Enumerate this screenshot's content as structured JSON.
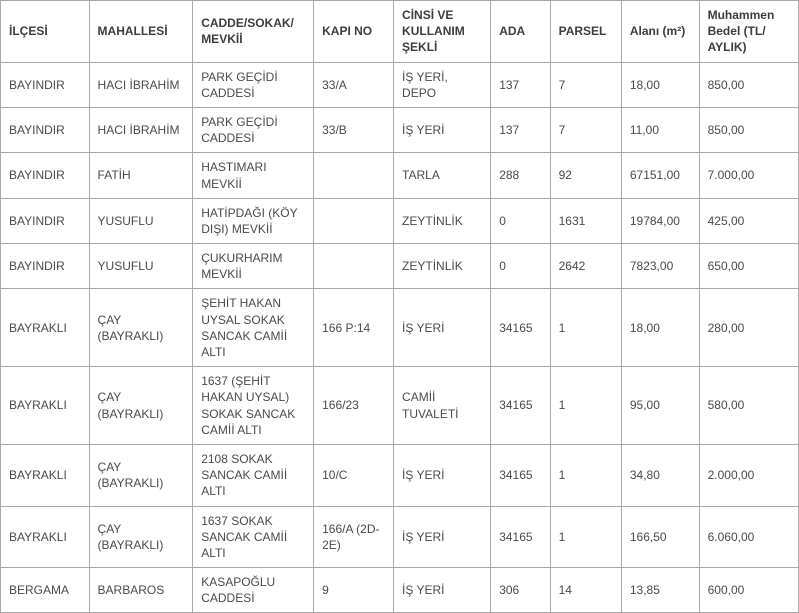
{
  "table": {
    "columns": [
      "İLÇESİ",
      "MAHALLESİ",
      "CADDE/SOKAK/\nMEVKİİ",
      "KAPI NO",
      "CİNSİ VE KULLANIM ŞEKLİ",
      "ADA",
      "PARSEL",
      "Alanı (m²)",
      "Muhammen Bedel (TL/\nAYLIK)"
    ],
    "rows": [
      [
        "BAYINDIR",
        "HACI İBRAHİM",
        "PARK GEÇİDİ CADDESİ",
        "33/A",
        "İŞ YERİ, DEPO",
        "137",
        "7",
        "18,00",
        "850,00"
      ],
      [
        "BAYINDIR",
        "HACI İBRAHİM",
        "PARK GEÇİDİ CADDESİ",
        "33/B",
        "İŞ YERİ",
        "137",
        "7",
        "11,00",
        "850,00"
      ],
      [
        "BAYINDIR",
        "FATİH",
        "HASTIMARI MEVKİİ",
        "",
        "TARLA",
        "288",
        "92",
        "67151,00",
        "7.000,00"
      ],
      [
        "BAYINDIR",
        "YUSUFLU",
        "HATİPDAĞI (KÖY DIŞI) MEVKİİ",
        "",
        "ZEYTİNLİK",
        "0",
        "1631",
        "19784,00",
        "425,00"
      ],
      [
        "BAYINDIR",
        "YUSUFLU",
        "ÇUKURHARIM MEVKİİ",
        "",
        "ZEYTİNLİK",
        "0",
        "2642",
        "7823,00",
        "650,00"
      ],
      [
        "BAYRAKLI",
        "ÇAY (BAYRAKLI)",
        "ŞEHİT HAKAN UYSAL SOKAK SANCAK CAMİİ ALTI",
        "166 P:14",
        "İŞ YERİ",
        "34165",
        "1",
        "18,00",
        "280,00"
      ],
      [
        "BAYRAKLI",
        "ÇAY (BAYRAKLI)",
        "1637 (ŞEHİT HAKAN UYSAL) SOKAK SANCAK CAMİİ ALTI",
        "166/23",
        "CAMİİ TUVALETİ",
        "34165",
        "1",
        "95,00",
        "580,00"
      ],
      [
        "BAYRAKLI",
        "ÇAY (BAYRAKLI)",
        "2108 SOKAK SANCAK CAMİİ ALTI",
        "10/C",
        "İŞ YERİ",
        "34165",
        "1",
        "34,80",
        "2.000,00"
      ],
      [
        "BAYRAKLI",
        "ÇAY (BAYRAKLI)",
        "1637 SOKAK SANCAK CAMİİ ALTI",
        "166/A (2D-2E)",
        "İŞ YERİ",
        "34165",
        "1",
        "166,50",
        "6.060,00"
      ],
      [
        "BERGAMA",
        "BARBAROS",
        "KASAPOĞLU CADDESİ",
        "9",
        "İŞ YERİ",
        "306",
        "14",
        "13,85",
        "600,00"
      ]
    ],
    "col_classes": [
      "col-ilcesi",
      "col-mahalle",
      "col-cadde",
      "col-kapi",
      "col-cinsi",
      "col-ada",
      "col-parsel",
      "col-alan",
      "col-bedel"
    ],
    "border_color": "#a8a8a8",
    "text_color": "#4a4a4a",
    "font_size": 12
  }
}
